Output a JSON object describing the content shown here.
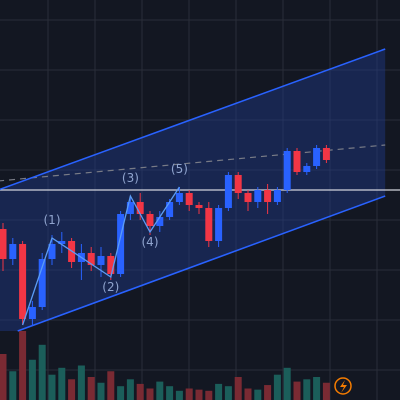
{
  "colors": {
    "background": "#131722",
    "grid": "#2a2e39",
    "up": "#2962ff",
    "down": "#f23645",
    "channel_line": "#2962ff",
    "channel_fill": "#1e3a8a",
    "horizontal_line": "#d1d4dc",
    "dashed_line": "#787b86",
    "wave_line": "#5b9cf6",
    "wave_label": "#90a4ce",
    "volume_up": "#1b5e5a",
    "volume_down": "#7a2a33",
    "badge": "#f57c00"
  },
  "icons": {
    "bottom_badge": "lightning-icon"
  },
  "chart_data": {
    "type": "candlestick",
    "title": "",
    "xlabel": "",
    "ylabel": "",
    "grid": true,
    "ylim": [
      0,
      100
    ],
    "candles": [
      {
        "i": 0,
        "o": 52,
        "h": 54,
        "l": 38,
        "c": 42
      },
      {
        "i": 1,
        "o": 42,
        "h": 49,
        "l": 40,
        "c": 47
      },
      {
        "i": 2,
        "o": 47,
        "h": 48,
        "l": 20,
        "c": 22
      },
      {
        "i": 3,
        "o": 22,
        "h": 28,
        "l": 20,
        "c": 26
      },
      {
        "i": 4,
        "o": 26,
        "h": 44,
        "l": 25,
        "c": 42
      },
      {
        "i": 5,
        "o": 42,
        "h": 50,
        "l": 40,
        "c": 47
      },
      {
        "i": 6,
        "o": 47,
        "h": 51,
        "l": 44,
        "c": 48
      },
      {
        "i": 7,
        "o": 48,
        "h": 49,
        "l": 39,
        "c": 41
      },
      {
        "i": 8,
        "o": 41,
        "h": 47,
        "l": 35,
        "c": 44
      },
      {
        "i": 9,
        "o": 44,
        "h": 46,
        "l": 38,
        "c": 40
      },
      {
        "i": 10,
        "o": 40,
        "h": 46,
        "l": 36,
        "c": 43
      },
      {
        "i": 11,
        "o": 43,
        "h": 44,
        "l": 35,
        "c": 37
      },
      {
        "i": 12,
        "o": 37,
        "h": 58,
        "l": 36,
        "c": 57
      },
      {
        "i": 13,
        "o": 57,
        "h": 63,
        "l": 55,
        "c": 61
      },
      {
        "i": 14,
        "o": 61,
        "h": 64,
        "l": 55,
        "c": 57
      },
      {
        "i": 15,
        "o": 57,
        "h": 58,
        "l": 50,
        "c": 53
      },
      {
        "i": 16,
        "o": 53,
        "h": 58,
        "l": 51,
        "c": 56
      },
      {
        "i": 17,
        "o": 56,
        "h": 62,
        "l": 55,
        "c": 61
      },
      {
        "i": 18,
        "o": 61,
        "h": 66,
        "l": 60,
        "c": 64
      },
      {
        "i": 19,
        "o": 64,
        "h": 65,
        "l": 58,
        "c": 60
      },
      {
        "i": 20,
        "o": 60,
        "h": 61,
        "l": 57,
        "c": 59
      },
      {
        "i": 21,
        "o": 59,
        "h": 61,
        "l": 46,
        "c": 48
      },
      {
        "i": 22,
        "o": 48,
        "h": 60,
        "l": 46,
        "c": 59
      },
      {
        "i": 23,
        "o": 59,
        "h": 71,
        "l": 58,
        "c": 70
      },
      {
        "i": 24,
        "o": 70,
        "h": 71,
        "l": 62,
        "c": 64
      },
      {
        "i": 25,
        "o": 64,
        "h": 65,
        "l": 58,
        "c": 61
      },
      {
        "i": 26,
        "o": 61,
        "h": 66,
        "l": 59,
        "c": 65
      },
      {
        "i": 27,
        "o": 65,
        "h": 67,
        "l": 57,
        "c": 61
      },
      {
        "i": 28,
        "o": 61,
        "h": 66,
        "l": 60,
        "c": 65
      },
      {
        "i": 29,
        "o": 65,
        "h": 79,
        "l": 64,
        "c": 78
      },
      {
        "i": 30,
        "o": 78,
        "h": 79,
        "l": 70,
        "c": 71
      },
      {
        "i": 31,
        "o": 71,
        "h": 74,
        "l": 70,
        "c": 73
      },
      {
        "i": 32,
        "o": 73,
        "h": 80,
        "l": 72,
        "c": 79
      },
      {
        "i": 33,
        "o": 79,
        "h": 80,
        "l": 74,
        "c": 75
      }
    ],
    "volume": [
      40,
      25,
      60,
      35,
      48,
      22,
      28,
      18,
      30,
      20,
      15,
      25,
      12,
      18,
      14,
      10,
      16,
      12,
      8,
      10,
      9,
      8,
      14,
      12,
      20,
      10,
      9,
      13,
      22,
      28,
      16,
      18,
      20,
      15
    ],
    "wave_labels": [
      "(1)",
      "(2)",
      "(3)",
      "(4)",
      "(5)"
    ],
    "wave_points": [
      {
        "i": 5,
        "v": 49
      },
      {
        "i": 11,
        "v": 36
      },
      {
        "i": 13,
        "v": 63
      },
      {
        "i": 15,
        "v": 51
      },
      {
        "i": 18,
        "v": 66
      }
    ],
    "channel": {
      "upper": [
        {
          "i": -0.5,
          "v": 65
        },
        {
          "i": 39,
          "v": 112
        }
      ],
      "lower": [
        {
          "i": 1.5,
          "v": 18
        },
        {
          "i": 39,
          "v": 63
        }
      ]
    },
    "horizontal_level": 65,
    "dashed_trend": [
      {
        "i": -0.5,
        "v": 68
      },
      {
        "i": 39,
        "v": 80
      }
    ]
  }
}
